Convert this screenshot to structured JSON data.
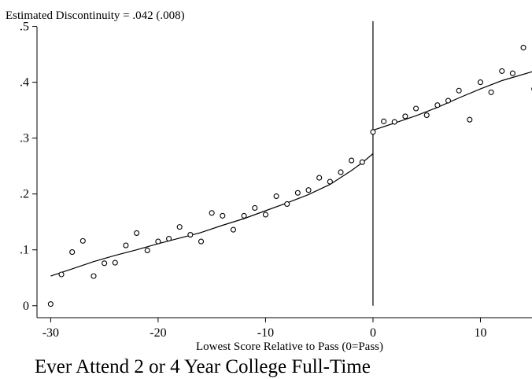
{
  "chart_data": {
    "type": "scatter",
    "title": "",
    "note": "Estimated Discontinuity = .042 (.008)",
    "xlabel": "Lowest Score Relative to Pass (0=Pass)",
    "ylabel": "",
    "caption": "Ever Attend 2 or 4 Year College Full-Time",
    "xlim": [
      -31.2,
      14.8
    ],
    "ylim": [
      -0.02,
      0.505
    ],
    "xticks": [
      -30,
      -20,
      -10,
      0,
      10
    ],
    "xtick_labels": [
      "-30",
      "-20",
      "-10",
      "0",
      "10"
    ],
    "yticks": [
      0,
      0.1,
      0.2,
      0.3,
      0.4,
      0.5
    ],
    "ytick_labels": [
      "0",
      ".1",
      ".2",
      ".3",
      ".4",
      ".5"
    ],
    "grid": false,
    "cutoff_x": 0,
    "points": [
      {
        "x": -30,
        "y": 0.003
      },
      {
        "x": -29,
        "y": 0.056
      },
      {
        "x": -28,
        "y": 0.096
      },
      {
        "x": -27,
        "y": 0.116
      },
      {
        "x": -26,
        "y": 0.053
      },
      {
        "x": -25,
        "y": 0.076
      },
      {
        "x": -24,
        "y": 0.077
      },
      {
        "x": -23,
        "y": 0.108
      },
      {
        "x": -22,
        "y": 0.13
      },
      {
        "x": -21,
        "y": 0.099
      },
      {
        "x": -20,
        "y": 0.115
      },
      {
        "x": -19,
        "y": 0.12
      },
      {
        "x": -18,
        "y": 0.141
      },
      {
        "x": -17,
        "y": 0.127
      },
      {
        "x": -16,
        "y": 0.115
      },
      {
        "x": -15,
        "y": 0.166
      },
      {
        "x": -14,
        "y": 0.161
      },
      {
        "x": -13,
        "y": 0.136
      },
      {
        "x": -12,
        "y": 0.161
      },
      {
        "x": -11,
        "y": 0.175
      },
      {
        "x": -10,
        "y": 0.163
      },
      {
        "x": -9,
        "y": 0.196
      },
      {
        "x": -8,
        "y": 0.182
      },
      {
        "x": -7,
        "y": 0.202
      },
      {
        "x": -6,
        "y": 0.207
      },
      {
        "x": -5,
        "y": 0.229
      },
      {
        "x": -4,
        "y": 0.222
      },
      {
        "x": -3,
        "y": 0.239
      },
      {
        "x": -2,
        "y": 0.26
      },
      {
        "x": -1,
        "y": 0.257
      },
      {
        "x": 0,
        "y": 0.311
      },
      {
        "x": 1,
        "y": 0.33
      },
      {
        "x": 2,
        "y": 0.329
      },
      {
        "x": 3,
        "y": 0.339
      },
      {
        "x": 4,
        "y": 0.353
      },
      {
        "x": 5,
        "y": 0.341
      },
      {
        "x": 6,
        "y": 0.359
      },
      {
        "x": 7,
        "y": 0.367
      },
      {
        "x": 8,
        "y": 0.385
      },
      {
        "x": 9,
        "y": 0.333
      },
      {
        "x": 10,
        "y": 0.4
      },
      {
        "x": 11,
        "y": 0.382
      },
      {
        "x": 12,
        "y": 0.42
      },
      {
        "x": 13,
        "y": 0.416
      },
      {
        "x": 14,
        "y": 0.462
      },
      {
        "x": 15,
        "y": 0.388
      }
    ],
    "fit_left": [
      [
        -30,
        0.053
      ],
      [
        -28,
        0.066
      ],
      [
        -26,
        0.079
      ],
      [
        -24,
        0.09
      ],
      [
        -22,
        0.1
      ],
      [
        -20,
        0.111
      ],
      [
        -18,
        0.121
      ],
      [
        -16,
        0.131
      ],
      [
        -14,
        0.144
      ],
      [
        -12,
        0.156
      ],
      [
        -10,
        0.17
      ],
      [
        -8,
        0.184
      ],
      [
        -6,
        0.199
      ],
      [
        -4,
        0.217
      ],
      [
        -2,
        0.242
      ],
      [
        -1,
        0.256
      ],
      [
        0,
        0.272
      ]
    ],
    "fit_right": [
      [
        0,
        0.314
      ],
      [
        2,
        0.327
      ],
      [
        4,
        0.34
      ],
      [
        6,
        0.355
      ],
      [
        8,
        0.372
      ],
      [
        10,
        0.388
      ],
      [
        12,
        0.403
      ],
      [
        15,
        0.42
      ]
    ]
  }
}
